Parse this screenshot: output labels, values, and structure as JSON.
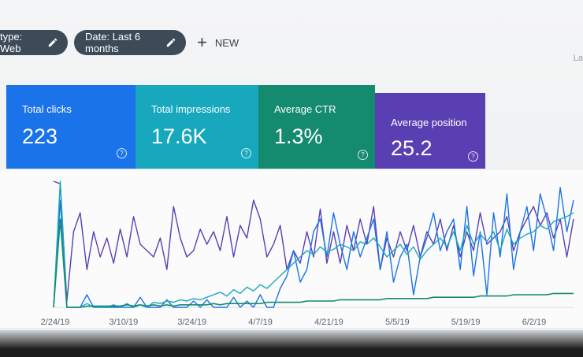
{
  "filters": {
    "type_chip": "type: Web",
    "date_chip": "Date: Last 6 months",
    "new_label": "NEW",
    "edge_text": "La"
  },
  "metrics": [
    {
      "label": "Total clicks",
      "value": "223"
    },
    {
      "label": "Total impressions",
      "value": "17.6K"
    },
    {
      "label": "Average CTR",
      "value": "1.3%"
    },
    {
      "label": "Average position",
      "value": "25.2"
    }
  ],
  "colors": {
    "clicks": "#1a73e8",
    "impressions": "#17a8bd",
    "ctr": "#148a6e",
    "position": "#5a3fb3"
  },
  "chart_data": {
    "type": "line",
    "x_ticks": [
      "2/24/19",
      "3/10/19",
      "3/24/19",
      "4/7/19",
      "4/21/19",
      "5/5/19",
      "5/19/19",
      "6/2/19"
    ],
    "ylim": [
      0,
      100
    ],
    "series": [
      {
        "key": "position",
        "values": [
          100,
          98,
          5,
          60,
          75,
          30,
          60,
          40,
          55,
          35,
          62,
          40,
          72,
          50,
          45,
          40,
          55,
          30,
          80,
          55,
          40,
          45,
          62,
          50,
          60,
          45,
          72,
          40,
          65,
          55,
          85,
          70,
          40,
          50,
          65,
          30,
          45,
          35,
          60,
          40,
          78,
          35,
          60,
          35,
          65,
          45,
          70,
          50,
          80,
          30,
          55,
          40,
          60,
          45,
          65,
          40,
          60,
          50,
          70,
          45,
          65,
          40,
          60,
          45,
          75,
          50,
          55,
          60,
          72,
          45,
          60,
          70,
          80,
          65,
          75,
          55,
          70,
          40,
          70
        ]
      },
      {
        "key": "clicks",
        "values": [
          0,
          85,
          0,
          0,
          0,
          10,
          0,
          0,
          0,
          0,
          0,
          0,
          0,
          8,
          0,
          0,
          0,
          6,
          0,
          0,
          0,
          5,
          0,
          6,
          0,
          0,
          0,
          8,
          0,
          5,
          0,
          10,
          0,
          0,
          15,
          25,
          45,
          20,
          30,
          60,
          70,
          40,
          75,
          50,
          30,
          60,
          40,
          55,
          70,
          30,
          60,
          20,
          40,
          50,
          10,
          40,
          55,
          75,
          45,
          60,
          70,
          30,
          80,
          25,
          60,
          10,
          75,
          40,
          90,
          30,
          60,
          80,
          45,
          90,
          70,
          45,
          95,
          60,
          85
        ]
      },
      {
        "key": "impressions",
        "values": [
          0,
          100,
          0,
          0,
          0,
          3,
          0,
          0,
          0,
          2,
          0,
          3,
          0,
          2,
          0,
          4,
          3,
          5,
          4,
          6,
          5,
          7,
          6,
          8,
          10,
          12,
          9,
          14,
          11,
          16,
          13,
          18,
          15,
          20,
          25,
          30,
          35,
          40,
          45,
          42,
          48,
          44,
          46,
          50,
          48,
          45,
          52,
          50,
          55,
          48,
          40,
          45,
          50,
          42,
          48,
          38,
          45,
          50,
          55,
          48,
          60,
          45,
          65,
          50,
          58,
          52,
          60,
          45,
          62,
          50,
          55,
          58,
          60,
          65,
          62,
          68,
          70,
          72,
          75
        ]
      },
      {
        "key": "ctr",
        "values": [
          0,
          70,
          0,
          0,
          0,
          1,
          1,
          1,
          1,
          1,
          1,
          2,
          1,
          2,
          1,
          2,
          1,
          2,
          1,
          2,
          2,
          2,
          2,
          2,
          3,
          2,
          3,
          3,
          3,
          3,
          3,
          3,
          4,
          4,
          4,
          4,
          4,
          4,
          5,
          5,
          5,
          5,
          5,
          6,
          6,
          6,
          6,
          6,
          6,
          6,
          7,
          7,
          7,
          7,
          7,
          7,
          7,
          8,
          8,
          8,
          8,
          8,
          8,
          8,
          9,
          9,
          9,
          9,
          9,
          10,
          10,
          10,
          10,
          10,
          10,
          11,
          11,
          11,
          11
        ]
      }
    ]
  }
}
